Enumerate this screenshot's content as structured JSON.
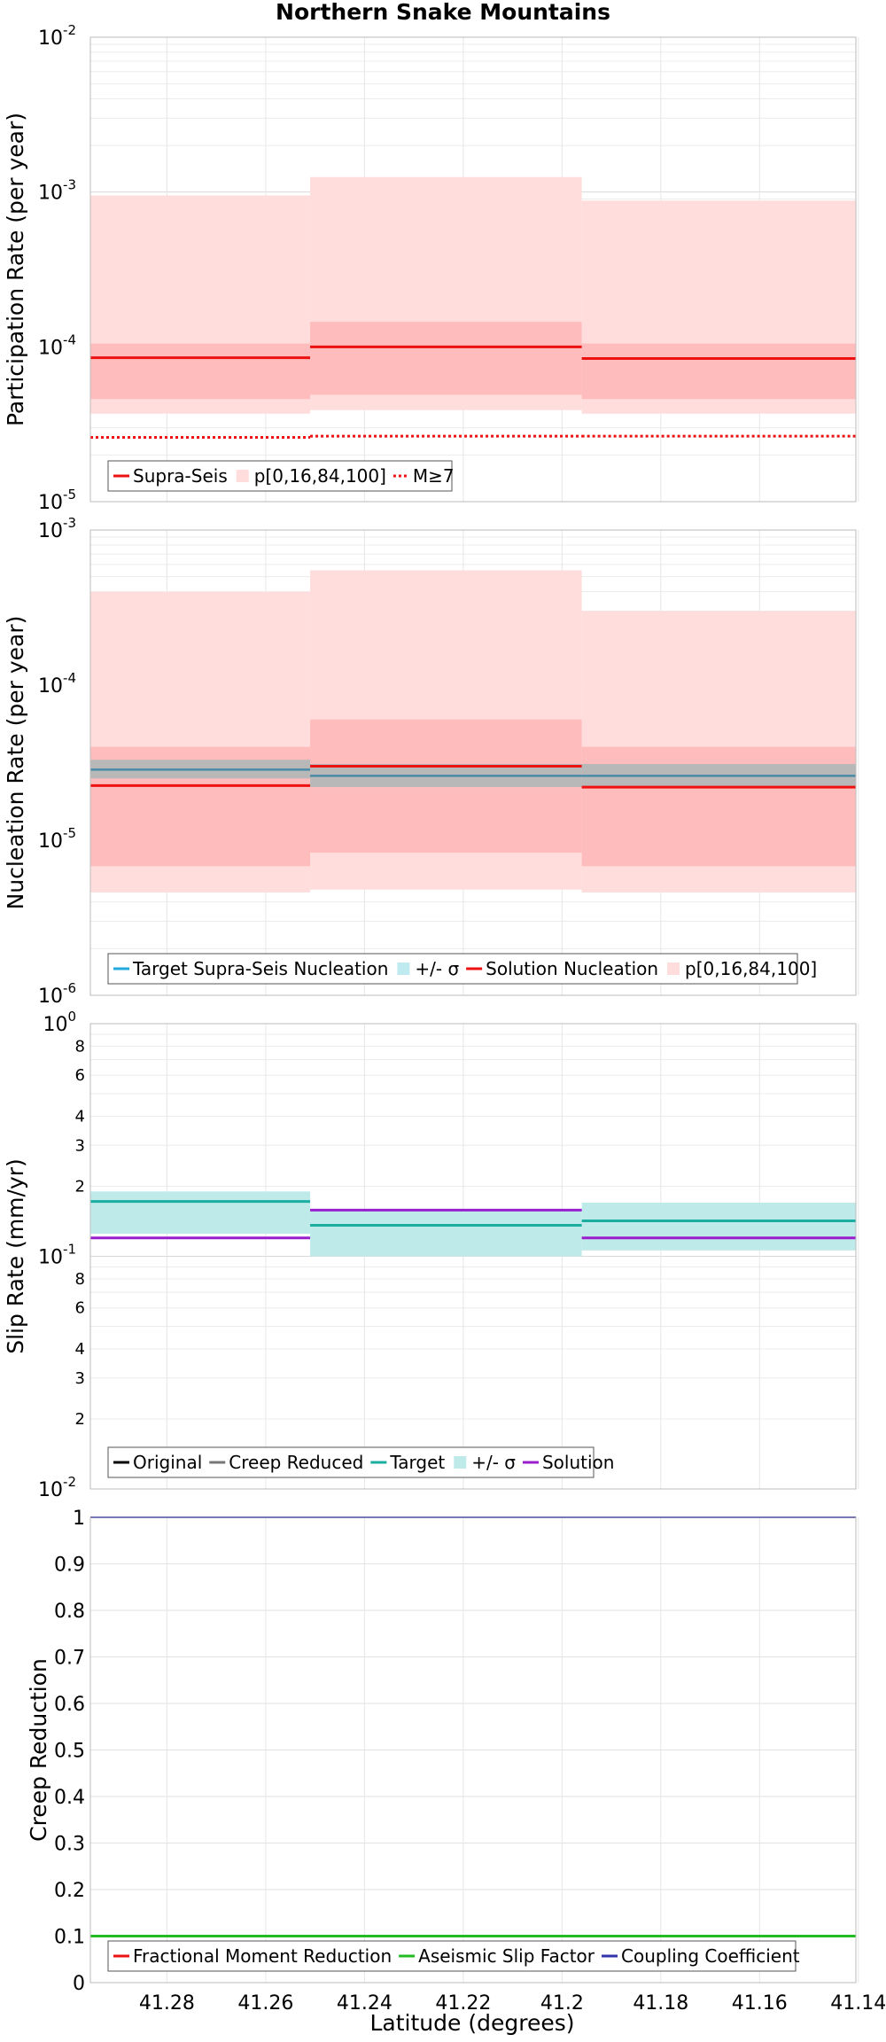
{
  "figure": {
    "title": "Northern Snake Mountains",
    "xlabel": "Latitude (degrees)",
    "x_ticks": [
      41.28,
      41.26,
      41.24,
      41.22,
      41.2,
      41.18,
      41.16,
      41.14
    ]
  },
  "chart_data": [
    {
      "id": "participation",
      "type": "line",
      "ylabel": "Participation Rate (per year)",
      "yscale": "log",
      "xlim": [
        41.2955,
        41.1405
      ],
      "ylim": [
        1e-05,
        0.01
      ],
      "major_ticks": [
        {
          "base": "10",
          "exp": "-5",
          "value": 1e-05
        },
        {
          "base": "10",
          "exp": "-4",
          "value": 0.0001
        },
        {
          "base": "10",
          "exp": "-3",
          "value": 0.001
        },
        {
          "base": "10",
          "exp": "-2",
          "value": 0.01
        }
      ],
      "minor_tick_labels": [],
      "segments": [
        41.2955,
        41.251,
        41.196,
        41.1405
      ],
      "bands": [
        {
          "name": "p[0,16,84,100]",
          "color": "#ffdddd",
          "lower": [
            3.7e-05,
            3.9e-05,
            3.7e-05
          ],
          "upper": [
            0.00095,
            0.00125,
            0.00088
          ]
        },
        {
          "name": "p16-84",
          "color": "#ffbcbc",
          "lower": [
            4.6e-05,
            4.9e-05,
            4.6e-05
          ],
          "upper": [
            0.000105,
            0.000145,
            0.000105
          ]
        }
      ],
      "series": [
        {
          "name": "Supra-Seis",
          "color": "#ee1111",
          "dash": "",
          "width": 3,
          "values": [
            8.5e-05,
            0.0001,
            8.4e-05
          ]
        },
        {
          "name": "M≥7",
          "color": "#ee1111",
          "dash": "3,3",
          "width": 3,
          "values": [
            2.6e-05,
            2.65e-05,
            2.65e-05
          ]
        }
      ],
      "legend": {
        "placement": "bottom-left",
        "entries": [
          {
            "label": "Supra-Seis",
            "kind": "line",
            "color": "#ee1111",
            "dash": ""
          },
          {
            "label": "p[0,16,84,100]",
            "kind": "box",
            "color": "#ffdddd",
            "dash": ""
          },
          {
            "label": "M≥7",
            "kind": "line",
            "color": "#ee1111",
            "dash": "3,3"
          }
        ]
      }
    },
    {
      "id": "nucleation",
      "type": "line",
      "ylabel": "Nucleation Rate (per year)",
      "yscale": "log",
      "xlim": [
        41.2955,
        41.1405
      ],
      "ylim": [
        1e-06,
        0.001
      ],
      "major_ticks": [
        {
          "base": "10",
          "exp": "-6",
          "value": 1e-06
        },
        {
          "base": "10",
          "exp": "-5",
          "value": 1e-05
        },
        {
          "base": "10",
          "exp": "-4",
          "value": 0.0001
        },
        {
          "base": "10",
          "exp": "-3",
          "value": 0.001
        }
      ],
      "minor_tick_labels": [],
      "segments": [
        41.2955,
        41.251,
        41.196,
        41.1405
      ],
      "bands": [
        {
          "name": "p[0,16,84,100]",
          "color": "#ffdddd",
          "lower": [
            4.6e-06,
            4.8e-06,
            4.6e-06
          ],
          "upper": [
            0.0004,
            0.00055,
            0.0003
          ]
        },
        {
          "name": "p16-84",
          "color": "#ffbcbc",
          "lower": [
            6.8e-06,
            8.3e-06,
            6.8e-06
          ],
          "upper": [
            4e-05,
            6e-05,
            4e-05
          ]
        },
        {
          "name": "+/- σ",
          "color": "#b8b8b8",
          "lower": [
            2.5e-05,
            2.2e-05,
            2.2e-05
          ],
          "upper": [
            3.3e-05,
            3.1e-05,
            3.1e-05
          ]
        }
      ],
      "series": [
        {
          "name": "Target Supra-Seis Nucleation",
          "color": "#4a8aa6",
          "dash": "",
          "width": 2.5,
          "values": [
            2.85e-05,
            2.6e-05,
            2.6e-05
          ]
        },
        {
          "name": "Solution Nucleation",
          "color": "#ee1111",
          "dash": "",
          "width": 3,
          "values": [
            2.25e-05,
            3e-05,
            2.2e-05
          ]
        }
      ],
      "legend": {
        "placement": "bottom-left",
        "entries": [
          {
            "label": "Target Supra-Seis Nucleation",
            "kind": "line",
            "color": "#22aadd",
            "dash": ""
          },
          {
            "label": "+/- σ",
            "kind": "box",
            "color": "#bfeaf0",
            "dash": ""
          },
          {
            "label": "Solution Nucleation",
            "kind": "line",
            "color": "#ee1111",
            "dash": ""
          },
          {
            "label": "p[0,16,84,100]",
            "kind": "box",
            "color": "#ffdddd",
            "dash": ""
          }
        ]
      }
    },
    {
      "id": "slip",
      "type": "line",
      "ylabel": "Slip Rate (mm/yr)",
      "yscale": "log",
      "xlim": [
        41.2955,
        41.1405
      ],
      "ylim": [
        0.01,
        1
      ],
      "major_ticks": [
        {
          "base": "10",
          "exp": "-2",
          "value": 0.01
        },
        {
          "base": "10",
          "exp": "-1",
          "value": 0.1
        },
        {
          "base": "10",
          "exp": "0",
          "value": 1
        }
      ],
      "minor_tick_labels": [
        {
          "label": "2",
          "value": 0.02
        },
        {
          "label": "3",
          "value": 0.03
        },
        {
          "label": "4",
          "value": 0.04
        },
        {
          "label": "6",
          "value": 0.06
        },
        {
          "label": "8",
          "value": 0.08
        },
        {
          "label": "2",
          "value": 0.2
        },
        {
          "label": "3",
          "value": 0.3
        },
        {
          "label": "4",
          "value": 0.4
        },
        {
          "label": "6",
          "value": 0.6
        },
        {
          "label": "8",
          "value": 0.8
        }
      ],
      "segments": [
        41.2955,
        41.251,
        41.196,
        41.1405
      ],
      "bands": [
        {
          "name": "+/- σ",
          "color": "#bfeaea",
          "lower": [
            0.125,
            0.1,
            0.106
          ],
          "upper": [
            0.19,
            0.16,
            0.17
          ]
        }
      ],
      "series": [
        {
          "name": "Target",
          "color": "#1aada0",
          "dash": "",
          "width": 3,
          "values": [
            0.172,
            0.136,
            0.142
          ]
        },
        {
          "name": "Solution",
          "color": "#9a1fcc",
          "dash": "",
          "width": 3,
          "values": [
            0.12,
            0.158,
            0.12
          ]
        }
      ],
      "legend": {
        "placement": "bottom-left",
        "entries": [
          {
            "label": "Original",
            "kind": "line",
            "color": "#000000",
            "dash": ""
          },
          {
            "label": "Creep Reduced",
            "kind": "line",
            "color": "#777777",
            "dash": ""
          },
          {
            "label": "Target",
            "kind": "line",
            "color": "#1aada0",
            "dash": ""
          },
          {
            "label": "+/- σ",
            "kind": "box",
            "color": "#bfeaea",
            "dash": ""
          },
          {
            "label": "Solution",
            "kind": "line",
            "color": "#9a1fcc",
            "dash": ""
          }
        ]
      }
    },
    {
      "id": "creep",
      "type": "line",
      "ylabel": "Creep Reduction",
      "yscale": "linear",
      "xlim": [
        41.2955,
        41.1405
      ],
      "ylim": [
        0,
        1
      ],
      "major_ticks": [
        {
          "base": "0",
          "exp": "",
          "value": 0
        },
        {
          "base": "0.1",
          "exp": "",
          "value": 0.1
        },
        {
          "base": "0.2",
          "exp": "",
          "value": 0.2
        },
        {
          "base": "0.3",
          "exp": "",
          "value": 0.3
        },
        {
          "base": "0.4",
          "exp": "",
          "value": 0.4
        },
        {
          "base": "0.5",
          "exp": "",
          "value": 0.5
        },
        {
          "base": "0.6",
          "exp": "",
          "value": 0.6
        },
        {
          "base": "0.7",
          "exp": "",
          "value": 0.7
        },
        {
          "base": "0.8",
          "exp": "",
          "value": 0.8
        },
        {
          "base": "0.9",
          "exp": "",
          "value": 0.9
        },
        {
          "base": "1",
          "exp": "",
          "value": 1
        }
      ],
      "minor_tick_labels": [],
      "segments": [
        41.2955,
        41.1405
      ],
      "bands": [],
      "series": [
        {
          "name": "Aseismic Slip Factor",
          "color": "#22bb22",
          "dash": "",
          "width": 3,
          "values": [
            0.1
          ]
        },
        {
          "name": "Coupling Coefficient",
          "color": "#3333aa",
          "dash": "",
          "width": 2,
          "values": [
            1
          ]
        }
      ],
      "legend": {
        "placement": "bottom-left",
        "entries": [
          {
            "label": "Fractional Moment Reduction",
            "kind": "line",
            "color": "#ee1111",
            "dash": ""
          },
          {
            "label": "Aseismic Slip Factor",
            "kind": "line",
            "color": "#22bb22",
            "dash": ""
          },
          {
            "label": "Coupling Coefficient",
            "kind": "line",
            "color": "#3333aa",
            "dash": ""
          }
        ]
      }
    }
  ]
}
